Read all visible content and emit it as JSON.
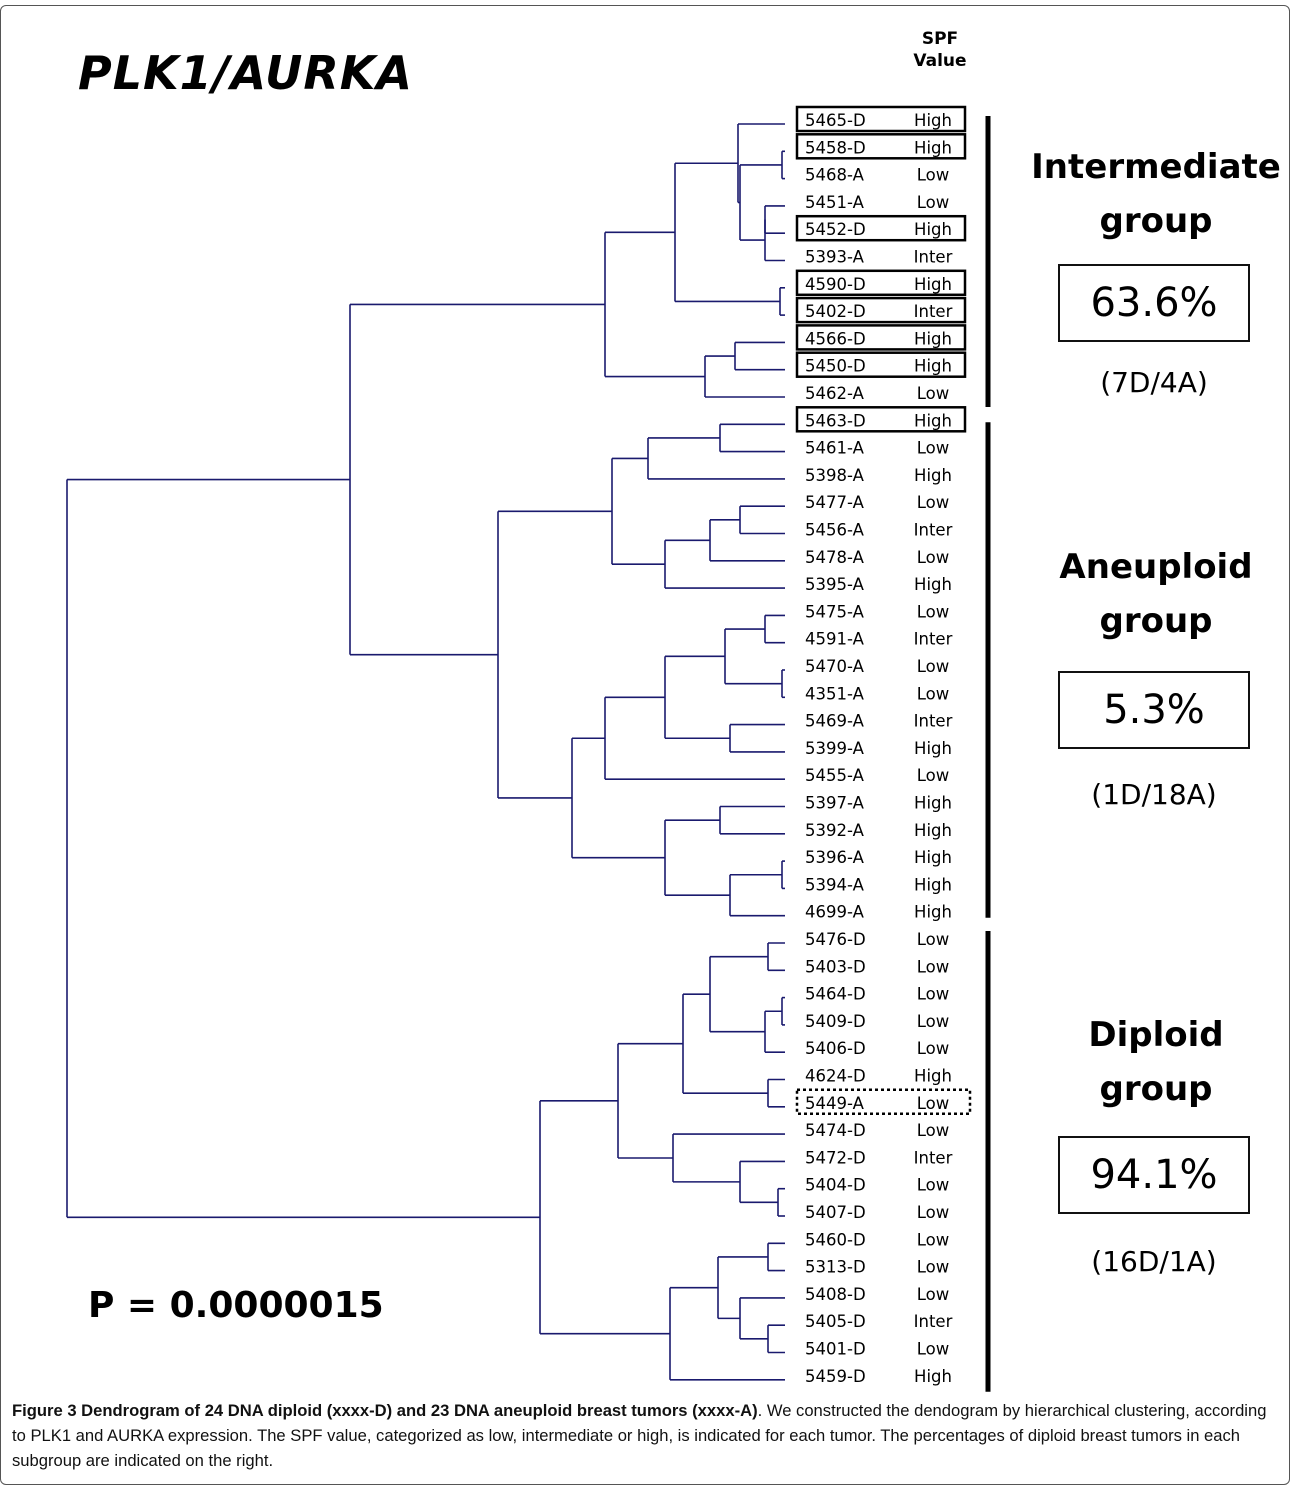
{
  "title": "PLK1/AURKA",
  "spf_header": [
    "SPF",
    "Value"
  ],
  "tumors": [
    {
      "id": "5465-D",
      "spf": "High",
      "box": "solid"
    },
    {
      "id": "5458-D",
      "spf": "High",
      "box": "solid"
    },
    {
      "id": "5468-A",
      "spf": "Low",
      "box": ""
    },
    {
      "id": "5451-A",
      "spf": "Low",
      "box": ""
    },
    {
      "id": "5452-D",
      "spf": "High",
      "box": "solid"
    },
    {
      "id": "5393-A",
      "spf": "Inter",
      "box": ""
    },
    {
      "id": "4590-D",
      "spf": "High",
      "box": "solid"
    },
    {
      "id": "5402-D",
      "spf": "Inter",
      "box": "solid"
    },
    {
      "id": "4566-D",
      "spf": "High",
      "box": "solid"
    },
    {
      "id": "5450-D",
      "spf": "High",
      "box": "solid"
    },
    {
      "id": "5462-A",
      "spf": "Low",
      "box": ""
    },
    {
      "id": "5463-D",
      "spf": "High",
      "box": "solid"
    },
    {
      "id": "5461-A",
      "spf": "Low",
      "box": ""
    },
    {
      "id": "5398-A",
      "spf": "High",
      "box": ""
    },
    {
      "id": "5477-A",
      "spf": "Low",
      "box": ""
    },
    {
      "id": "5456-A",
      "spf": "Inter",
      "box": ""
    },
    {
      "id": "5478-A",
      "spf": "Low",
      "box": ""
    },
    {
      "id": "5395-A",
      "spf": "High",
      "box": ""
    },
    {
      "id": "5475-A",
      "spf": "Low",
      "box": ""
    },
    {
      "id": "4591-A",
      "spf": "Inter",
      "box": ""
    },
    {
      "id": "5470-A",
      "spf": "Low",
      "box": ""
    },
    {
      "id": "4351-A",
      "spf": "Low",
      "box": ""
    },
    {
      "id": "5469-A",
      "spf": "Inter",
      "box": ""
    },
    {
      "id": "5399-A",
      "spf": "High",
      "box": ""
    },
    {
      "id": "5455-A",
      "spf": "Low",
      "box": ""
    },
    {
      "id": "5397-A",
      "spf": "High",
      "box": ""
    },
    {
      "id": "5392-A",
      "spf": "High",
      "box": ""
    },
    {
      "id": "5396-A",
      "spf": "High",
      "box": ""
    },
    {
      "id": "5394-A",
      "spf": "High",
      "box": ""
    },
    {
      "id": "4699-A",
      "spf": "High",
      "box": ""
    },
    {
      "id": "5476-D",
      "spf": "Low",
      "box": ""
    },
    {
      "id": "5403-D",
      "spf": "Low",
      "box": ""
    },
    {
      "id": "5464-D",
      "spf": "Low",
      "box": ""
    },
    {
      "id": "5409-D",
      "spf": "Low",
      "box": ""
    },
    {
      "id": "5406-D",
      "spf": "Low",
      "box": ""
    },
    {
      "id": "4624-D",
      "spf": "High",
      "box": ""
    },
    {
      "id": "5449-A",
      "spf": "Low",
      "box": "dotted"
    },
    {
      "id": "5474-D",
      "spf": "Low",
      "box": ""
    },
    {
      "id": "5472-D",
      "spf": "Inter",
      "box": ""
    },
    {
      "id": "5404-D",
      "spf": "Low",
      "box": ""
    },
    {
      "id": "5407-D",
      "spf": "Low",
      "box": ""
    },
    {
      "id": "5460-D",
      "spf": "Low",
      "box": ""
    },
    {
      "id": "5313-D",
      "spf": "Low",
      "box": ""
    },
    {
      "id": "5408-D",
      "spf": "Low",
      "box": ""
    },
    {
      "id": "5405-D",
      "spf": "Inter",
      "box": ""
    },
    {
      "id": "5401-D",
      "spf": "Low",
      "box": ""
    },
    {
      "id": "5459-D",
      "spf": "High",
      "box": ""
    }
  ],
  "groups": [
    {
      "name_line1": "Intermediate",
      "name_line2": "group",
      "percent": "63.6%",
      "count": "(7D/4A)"
    },
    {
      "name_line1": "Aneuploid",
      "name_line2": "group",
      "percent": "5.3%",
      "count": "(1D/18A)"
    },
    {
      "name_line1": "Diploid",
      "name_line2": "group",
      "percent": "94.1%",
      "count": "(16D/1A)"
    }
  ],
  "p_value": "P = 0.0000015",
  "caption": {
    "bold": "Figure 3 Dendrogram of 24 DNA diploid (xxxx-D) and 23 DNA aneuploid breast tumors (xxxx-A)",
    "text": ". We constructed the dendogram by hierarchical clustering, according to PLK1 and AURKA expression. The SPF value, categorized as low, intermediate or high, is indicated for each tumor. The percentages of diploid breast tumors in each subgroup are indicated on the right."
  }
}
